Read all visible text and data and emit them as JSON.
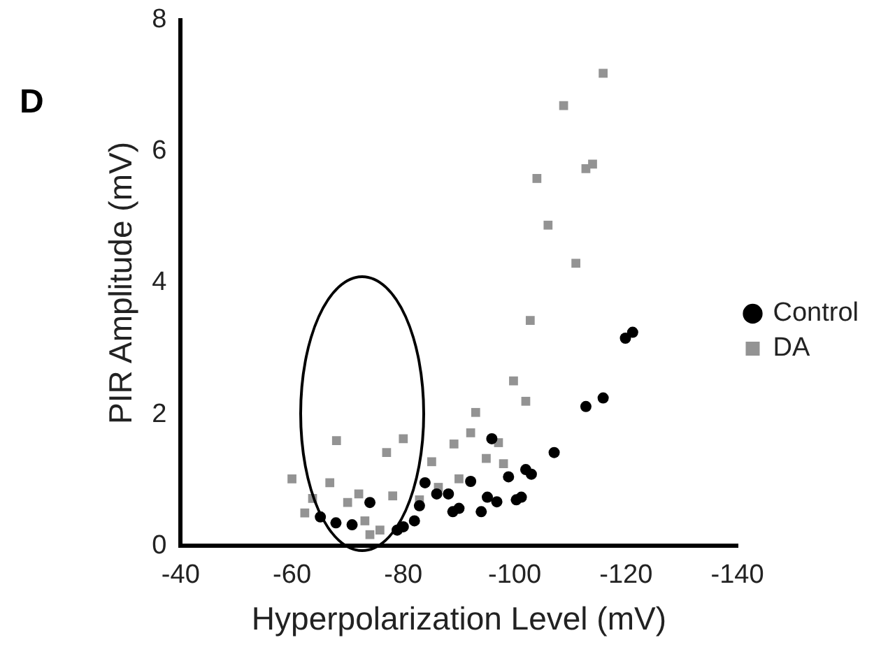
{
  "chart_data": {
    "type": "scatter",
    "title": "D",
    "xlabel": "Hyperpolarization Level (mV)",
    "ylabel": "PIR Amplitude (mV)",
    "xlim": [
      -40,
      -140
    ],
    "xticks": [
      -40,
      -60,
      -80,
      -100,
      -120,
      -140
    ],
    "ylim": [
      0,
      8
    ],
    "yticks": [
      0,
      2,
      4,
      6,
      8
    ],
    "grid": false,
    "legend": "right",
    "series": [
      {
        "name": "Control",
        "color": "#000000",
        "marker": "circle",
        "x": [
          -65.1,
          -67.9,
          -70.8,
          -74.0,
          -78.9,
          -80.0,
          -82.0,
          -82.9,
          -83.9,
          -86.0,
          -88.1,
          -88.9,
          -90.0,
          -92.1,
          -94.0,
          -95.1,
          -95.9,
          -96.8,
          -98.9,
          -100.3,
          -101.2,
          -102.0,
          -103.0,
          -107.1,
          -112.8,
          -115.9,
          -119.9,
          -121.2
        ],
        "values": [
          0.44,
          0.35,
          0.32,
          0.66,
          0.24,
          0.29,
          0.38,
          0.61,
          0.96,
          0.79,
          0.79,
          0.52,
          0.57,
          0.98,
          0.52,
          0.74,
          1.63,
          0.67,
          1.05,
          0.7,
          0.74,
          1.16,
          1.09,
          1.42,
          2.12,
          2.25,
          3.16,
          3.25
        ]
      },
      {
        "name": "DA",
        "color": "#939393",
        "marker": "square",
        "x": [
          -60.0,
          -62.3,
          -63.7,
          -66.8,
          -68.0,
          -70.0,
          -72.0,
          -73.1,
          -74.0,
          -75.8,
          -77.0,
          -78.1,
          -80.0,
          -82.9,
          -85.1,
          -86.3,
          -89.1,
          -90.0,
          -92.1,
          -93.0,
          -94.9,
          -97.1,
          -98.0,
          -99.8,
          -102.0,
          -102.8,
          -104.0,
          -106.0,
          -108.8,
          -111.0,
          -112.8,
          -114.0,
          -115.9
        ],
        "values": [
          1.02,
          0.5,
          0.72,
          0.96,
          1.6,
          0.66,
          0.79,
          0.38,
          0.17,
          0.24,
          1.42,
          0.76,
          1.63,
          0.7,
          1.28,
          0.89,
          1.55,
          1.02,
          1.72,
          2.03,
          1.33,
          1.57,
          1.25,
          2.51,
          2.2,
          3.43,
          5.59,
          4.88,
          6.7,
          4.3,
          5.74,
          5.81,
          7.19
        ]
      }
    ]
  }
}
